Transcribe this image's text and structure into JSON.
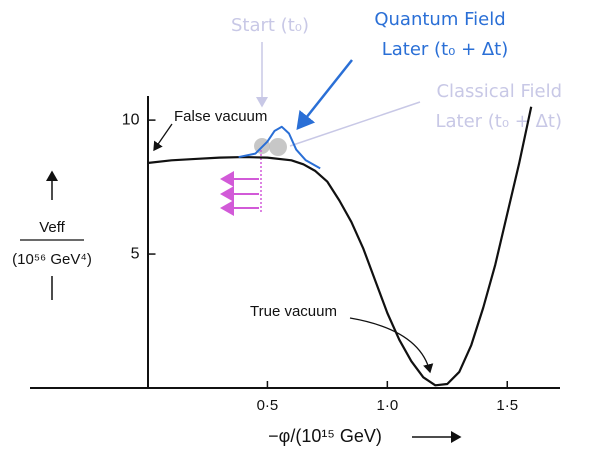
{
  "chart_data": {
    "type": "line",
    "x": [
      0,
      0.1,
      0.2,
      0.3,
      0.4,
      0.5,
      0.6,
      0.65,
      0.7,
      0.75,
      0.8,
      0.85,
      0.9,
      0.95,
      1.0,
      1.05,
      1.1,
      1.15,
      1.2,
      1.25,
      1.3,
      1.35,
      1.4,
      1.45,
      1.5,
      1.55,
      1.6
    ],
    "values": [
      8.4,
      8.5,
      8.55,
      8.6,
      8.62,
      8.6,
      8.5,
      8.35,
      8.1,
      7.7,
      7.0,
      6.2,
      5.2,
      4.0,
      2.8,
      1.8,
      1.0,
      0.4,
      0.1,
      0.15,
      0.6,
      1.6,
      3.0,
      4.6,
      6.5,
      8.4,
      10.5
    ],
    "color": "#111111",
    "wave_packet": {
      "x": [
        0.38,
        0.45,
        0.5,
        0.53,
        0.56,
        0.59,
        0.62,
        0.66,
        0.72
      ],
      "values": [
        8.62,
        8.75,
        9.2,
        9.6,
        9.75,
        9.5,
        8.9,
        8.5,
        8.2
      ],
      "color": "#2a6fd6"
    },
    "xlim": [
      -0.49,
      1.72
    ],
    "ylim": [
      0,
      10.9
    ],
    "xticks": [
      {
        "value": 0.5,
        "label": "0·5"
      },
      {
        "value": 1.0,
        "label": "1·0"
      },
      {
        "value": 1.5,
        "label": "1·5"
      }
    ],
    "yticks": [
      5,
      10
    ],
    "xlabel": "−φ/(10¹⁵ GeV)",
    "ylabel": "Veff",
    "ylabel_units": "(10⁵⁶ GeV⁴)",
    "annotations": {
      "false_vacuum": "False vacuum",
      "true_vacuum": "True vacuum",
      "start": "Start (t₀)",
      "quantum_title": "Quantum Field",
      "quantum_time": "Later (t₀ + Δt)",
      "classical_title": "Classical Field",
      "classical_time": "Later (t₀ + Δt)"
    }
  }
}
